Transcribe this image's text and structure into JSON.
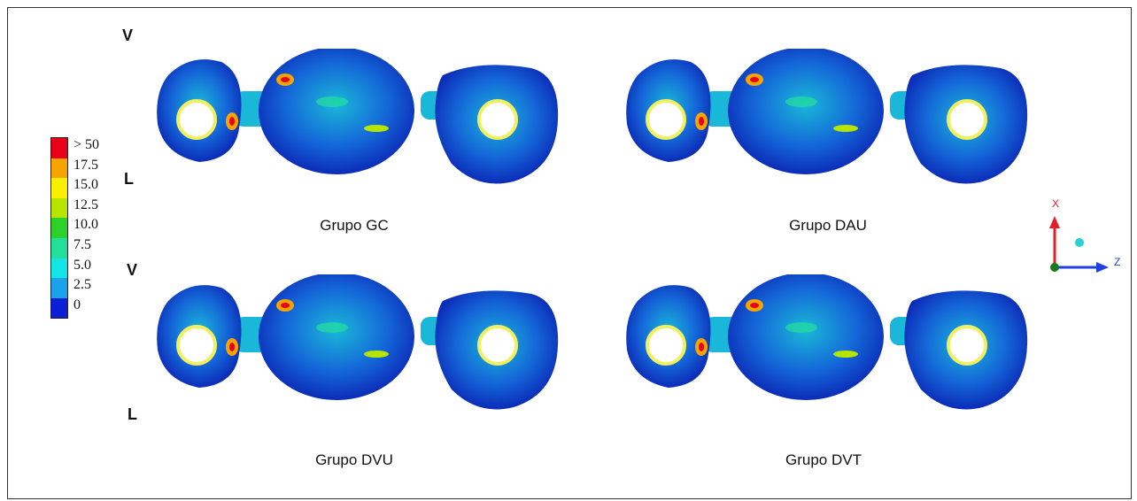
{
  "orientation_labels": {
    "top_vestibular": "V",
    "top_lingual": "L",
    "bottom_vestibular": "V",
    "bottom_lingual": "L"
  },
  "legend": {
    "entries": [
      {
        "label": "> 50",
        "color": "#e8001a"
      },
      {
        "label": "17.5",
        "color": "#f7a400"
      },
      {
        "label": "15.0",
        "color": "#f8f000"
      },
      {
        "label": "12.5",
        "color": "#b7e400"
      },
      {
        "label": "10.0",
        "color": "#2ed12a"
      },
      {
        "label": "7.5",
        "color": "#22e09c"
      },
      {
        "label": "5.0",
        "color": "#14e6e6"
      },
      {
        "label": "2.5",
        "color": "#1aa3ea"
      },
      {
        "label": "0",
        "color": "#0a1fd6"
      }
    ]
  },
  "panels": [
    {
      "title": "Grupo GC"
    },
    {
      "title": "Grupo DAU"
    },
    {
      "title": "Grupo DVU"
    },
    {
      "title": "Grupo DVT"
    }
  ],
  "axes": {
    "x_label": "X",
    "z_label": "Z",
    "x_color": "#e0202a",
    "z_color": "#2040e0",
    "origin_color": "#1a7a1a",
    "marker_color": "#2ad0d8"
  },
  "colors": {
    "model_dark": "#0a1fb0",
    "model_mid": "#1466d8",
    "model_light": "#1ab8d8",
    "hole_ring": "#f0f060"
  }
}
